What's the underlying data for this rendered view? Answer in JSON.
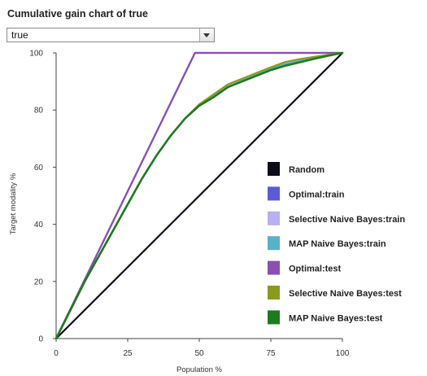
{
  "header": {
    "title": "Cumulative gain chart of true"
  },
  "selector": {
    "value": "true"
  },
  "chart_data": {
    "type": "line",
    "title": "Cumulative gain chart of true",
    "xlabel": "Population %",
    "ylabel": "Target modality %",
    "xlim": [
      0,
      100
    ],
    "ylim": [
      0,
      100
    ],
    "xticks": [
      0,
      25,
      50,
      75,
      100
    ],
    "yticks": [
      0,
      20,
      40,
      60,
      80,
      100
    ],
    "grid": false,
    "legend_position": "right",
    "series": [
      {
        "name": "Random",
        "color": "#0d0d1a",
        "width": 2.2,
        "x": [
          0,
          100
        ],
        "y": [
          0,
          100
        ]
      },
      {
        "name": "Optimal:train",
        "color": "#5b5bd6",
        "width": 2.2,
        "x": [
          0,
          48.5,
          100
        ],
        "y": [
          0,
          100,
          100
        ]
      },
      {
        "name": "Selective Naive Bayes:train",
        "color": "#b8b0f0",
        "width": 2,
        "x": [
          0,
          5,
          10,
          15,
          20,
          25,
          30,
          35,
          40,
          45,
          50,
          55,
          60,
          65,
          70,
          75,
          80,
          85,
          90,
          95,
          100
        ],
        "y": [
          0,
          10,
          20,
          29,
          38,
          47,
          56,
          64,
          71,
          77,
          82,
          85.5,
          88.5,
          90.8,
          93,
          95,
          96.5,
          97.6,
          98.5,
          99.3,
          100
        ]
      },
      {
        "name": "MAP Naive Bayes:train",
        "color": "#5ab0c8",
        "width": 2,
        "x": [
          0,
          5,
          10,
          15,
          20,
          25,
          30,
          35,
          40,
          45,
          50,
          55,
          60,
          65,
          70,
          75,
          80,
          85,
          90,
          95,
          100
        ],
        "y": [
          0,
          10,
          20,
          29,
          38,
          47,
          56,
          64,
          71,
          77,
          82,
          85,
          88,
          90.3,
          92.4,
          94.5,
          96,
          97.2,
          98.2,
          99.1,
          100
        ]
      },
      {
        "name": "Optimal:test",
        "color": "#8b4fb0",
        "width": 2.2,
        "x": [
          0,
          48.5,
          100
        ],
        "y": [
          0,
          100,
          100
        ]
      },
      {
        "name": "Selective Naive Bayes:test",
        "color": "#8a9a1e",
        "width": 2.2,
        "x": [
          0,
          5,
          10,
          15,
          20,
          25,
          30,
          35,
          40,
          45,
          50,
          55,
          60,
          65,
          70,
          75,
          80,
          85,
          90,
          95,
          100
        ],
        "y": [
          0,
          10,
          20,
          29,
          38,
          47,
          56,
          64,
          71,
          77,
          82,
          85.5,
          89,
          91,
          93,
          95,
          96.8,
          97.8,
          98.6,
          99.3,
          100
        ]
      },
      {
        "name": "MAP Naive Bayes:test",
        "color": "#1e7a1e",
        "width": 2.6,
        "x": [
          0,
          5,
          10,
          15,
          20,
          25,
          30,
          35,
          40,
          45,
          50,
          55,
          60,
          65,
          70,
          75,
          80,
          85,
          90,
          95,
          100
        ],
        "y": [
          0,
          10,
          20,
          29,
          38,
          47,
          56,
          64,
          71,
          77,
          81.5,
          84.5,
          88,
          90,
          92,
          94,
          95.5,
          96.7,
          97.9,
          99,
          100
        ]
      }
    ]
  }
}
